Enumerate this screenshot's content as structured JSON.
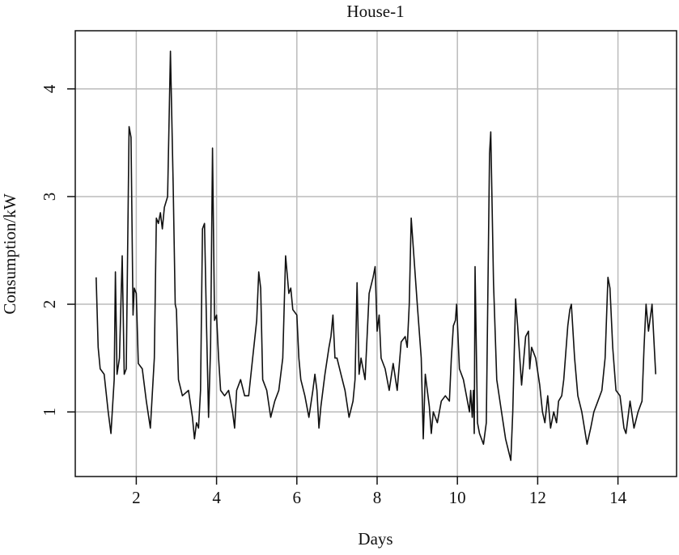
{
  "chart_data": {
    "type": "line",
    "title": "House-1",
    "x_label": "Days",
    "y_label": "Consumption/kW",
    "xlim": [
      0.48,
      15.46
    ],
    "ylim": [
      0.4,
      4.54
    ],
    "xticks": [
      2,
      4,
      6,
      8,
      10,
      12,
      14
    ],
    "yticks": [
      1,
      2,
      3,
      4
    ],
    "grid": true,
    "series": [
      {
        "name": "House-1",
        "color": "#111111",
        "x": [
          1.0,
          1.05,
          1.1,
          1.2,
          1.3,
          1.37,
          1.45,
          1.48,
          1.52,
          1.58,
          1.65,
          1.7,
          1.75,
          1.82,
          1.87,
          1.92,
          1.95,
          2.0,
          2.05,
          2.15,
          2.25,
          2.35,
          2.45,
          2.5,
          2.55,
          2.6,
          2.65,
          2.7,
          2.78,
          2.85,
          2.92,
          2.97,
          3.0,
          3.05,
          3.15,
          3.3,
          3.4,
          3.45,
          3.5,
          3.55,
          3.6,
          3.65,
          3.7,
          3.75,
          3.8,
          3.85,
          3.9,
          3.95,
          4.0,
          4.05,
          4.1,
          4.2,
          4.3,
          4.4,
          4.45,
          4.5,
          4.6,
          4.7,
          4.8,
          4.9,
          5.0,
          5.05,
          5.1,
          5.15,
          5.25,
          5.35,
          5.45,
          5.55,
          5.65,
          5.72,
          5.8,
          5.85,
          5.9,
          6.0,
          6.05,
          6.1,
          6.2,
          6.3,
          6.4,
          6.45,
          6.5,
          6.55,
          6.6,
          6.7,
          6.8,
          6.85,
          6.9,
          6.95,
          7.0,
          7.1,
          7.2,
          7.3,
          7.4,
          7.45,
          7.5,
          7.55,
          7.6,
          7.7,
          7.8,
          7.9,
          7.95,
          8.0,
          8.05,
          8.1,
          8.2,
          8.3,
          8.4,
          8.5,
          8.6,
          8.7,
          8.75,
          8.8,
          8.85,
          9.0,
          9.1,
          9.15,
          9.2,
          9.3,
          9.35,
          9.4,
          9.5,
          9.6,
          9.7,
          9.8,
          9.85,
          9.9,
          9.95,
          9.98,
          10.05,
          10.15,
          10.3,
          10.33,
          10.37,
          10.4,
          10.42,
          10.44,
          10.5,
          10.55,
          10.65,
          10.72,
          10.8,
          10.83,
          10.9,
          10.98,
          11.1,
          11.2,
          11.33,
          11.38,
          11.45,
          11.5,
          11.6,
          11.7,
          11.77,
          11.8,
          11.85,
          11.95,
          12.05,
          12.12,
          12.18,
          12.25,
          12.32,
          12.4,
          12.47,
          12.52,
          12.6,
          12.65,
          12.75,
          12.8,
          12.84,
          12.92,
          13.0,
          13.1,
          13.23,
          13.32,
          13.4,
          13.5,
          13.6,
          13.68,
          13.75,
          13.8,
          13.87,
          13.95,
          14.05,
          14.15,
          14.2,
          14.3,
          14.4,
          14.5,
          14.6,
          14.65,
          14.7,
          14.76,
          14.85,
          14.94
        ],
        "values": [
          2.25,
          1.6,
          1.4,
          1.35,
          1.0,
          0.8,
          1.3,
          2.3,
          1.35,
          1.5,
          2.45,
          1.35,
          1.4,
          3.65,
          3.55,
          1.9,
          2.15,
          2.1,
          1.45,
          1.4,
          1.1,
          0.85,
          1.5,
          2.8,
          2.75,
          2.85,
          2.7,
          2.9,
          3.0,
          4.35,
          3.1,
          2.0,
          1.95,
          1.3,
          1.15,
          1.2,
          0.95,
          0.75,
          0.9,
          0.85,
          1.2,
          2.7,
          2.75,
          1.8,
          0.95,
          1.6,
          3.45,
          1.85,
          1.9,
          1.5,
          1.2,
          1.15,
          1.2,
          1.0,
          0.85,
          1.2,
          1.3,
          1.15,
          1.15,
          1.5,
          1.85,
          2.3,
          2.15,
          1.3,
          1.2,
          0.95,
          1.1,
          1.2,
          1.5,
          2.45,
          2.1,
          2.15,
          1.95,
          1.9,
          1.5,
          1.3,
          1.15,
          0.95,
          1.2,
          1.35,
          1.2,
          0.85,
          1.05,
          1.35,
          1.6,
          1.7,
          1.9,
          1.5,
          1.5,
          1.35,
          1.2,
          0.95,
          1.1,
          1.3,
          2.2,
          1.35,
          1.5,
          1.3,
          2.1,
          2.25,
          2.35,
          1.75,
          1.9,
          1.5,
          1.4,
          1.2,
          1.45,
          1.2,
          1.65,
          1.7,
          1.6,
          2.0,
          2.8,
          2.0,
          1.5,
          0.75,
          1.35,
          1.05,
          0.8,
          1.0,
          0.9,
          1.1,
          1.15,
          1.1,
          1.5,
          1.8,
          1.85,
          2.0,
          1.4,
          1.3,
          1.0,
          1.2,
          0.95,
          1.2,
          0.8,
          2.35,
          0.9,
          0.8,
          0.7,
          0.9,
          3.4,
          3.6,
          2.2,
          1.3,
          1.0,
          0.75,
          0.55,
          1.0,
          2.05,
          1.8,
          1.25,
          1.7,
          1.75,
          1.4,
          1.6,
          1.5,
          1.25,
          1.0,
          0.9,
          1.15,
          0.85,
          1.0,
          0.9,
          1.1,
          1.15,
          1.3,
          1.8,
          1.95,
          2.0,
          1.5,
          1.15,
          1.0,
          0.7,
          0.85,
          1.0,
          1.1,
          1.2,
          1.5,
          2.25,
          2.15,
          1.6,
          1.2,
          1.15,
          0.85,
          0.8,
          1.1,
          0.85,
          1.0,
          1.1,
          1.6,
          2.0,
          1.75,
          2.0,
          1.35
        ]
      }
    ]
  }
}
